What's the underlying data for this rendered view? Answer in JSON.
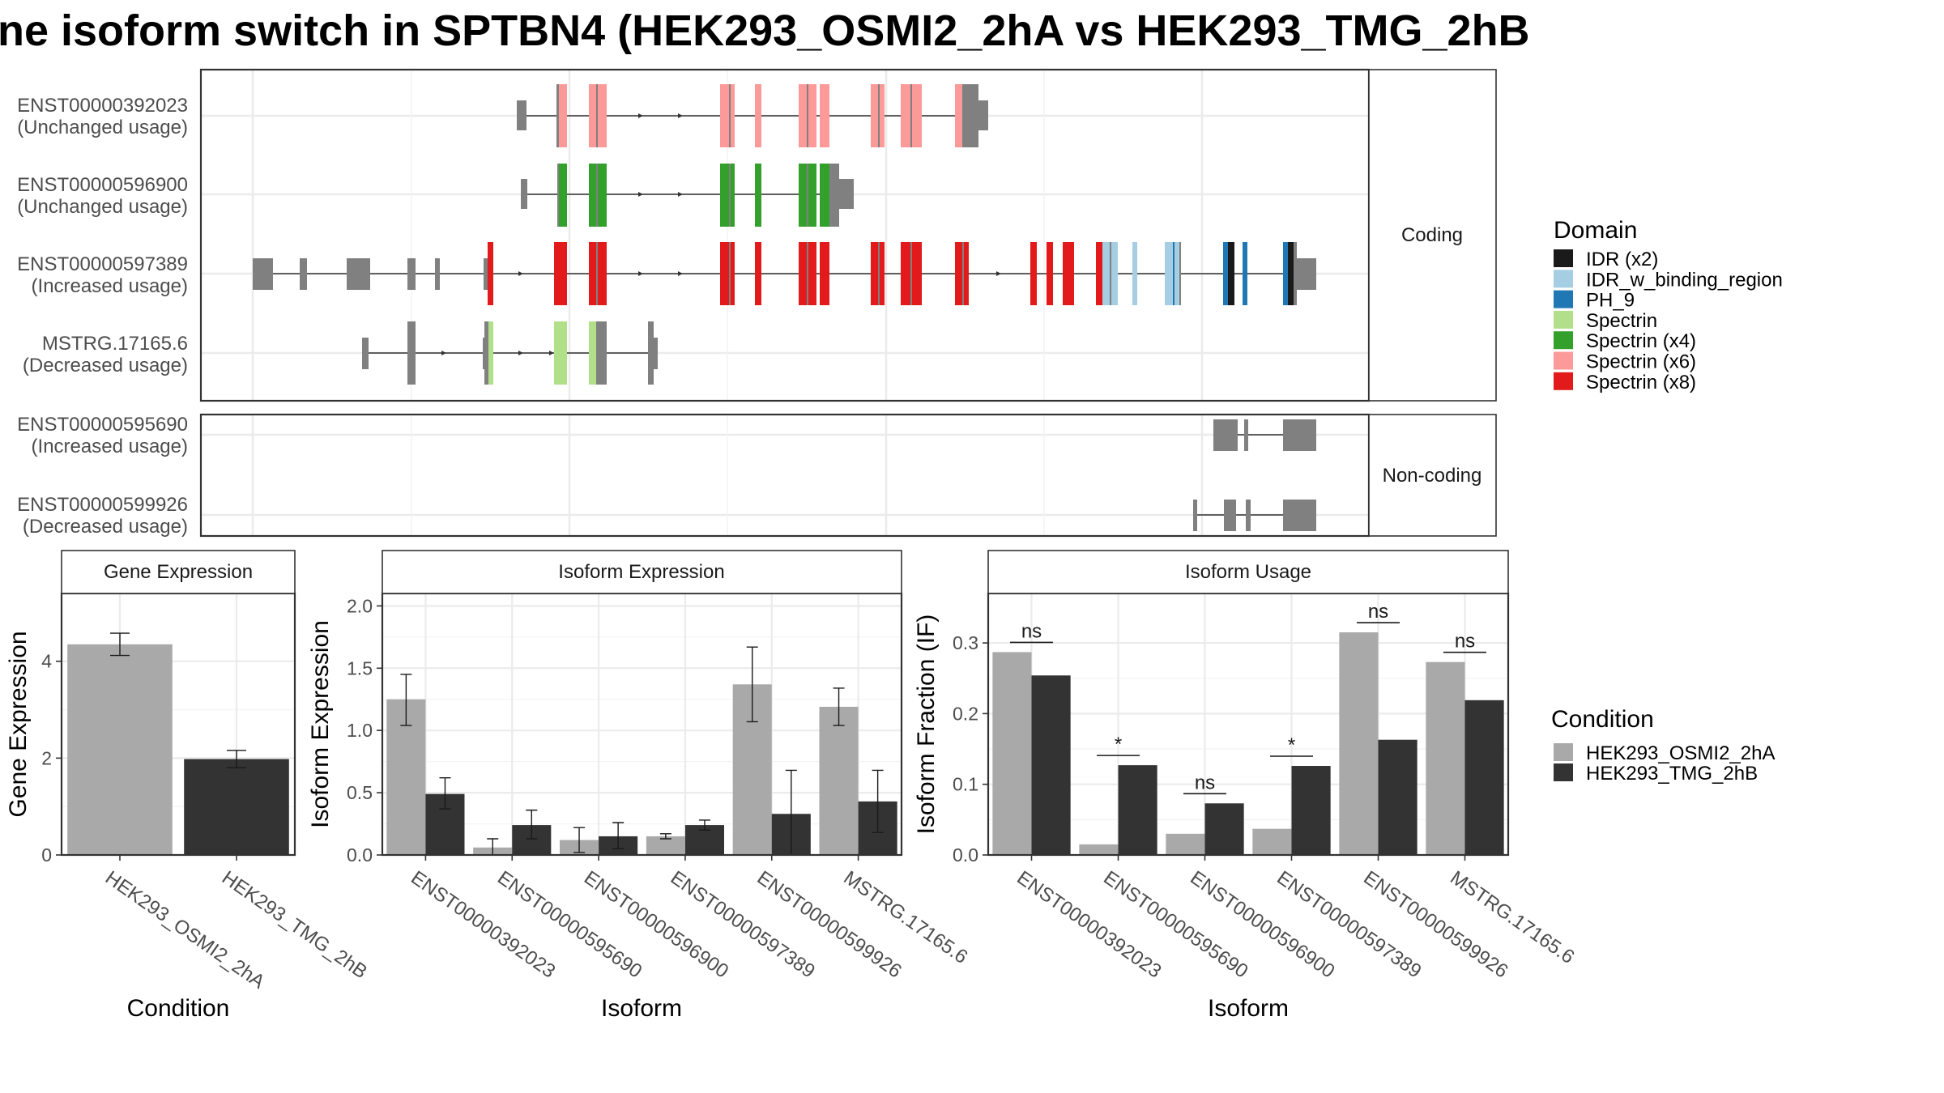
{
  "title": "ne isoform switch in SPTBN4 (HEK293_OSMI2_2hA vs HEK293_TMG_2hB",
  "colors": {
    "cond_a": "#a9a9a9",
    "cond_b": "#333333",
    "exon": "#808080",
    "grid": "#ebebeb",
    "panel_border": "#333333",
    "strip_fill": "#ffffff"
  },
  "structure": {
    "coding_label": "Coding",
    "noncoding_label": "Non-coding",
    "coding_rows": [
      {
        "id": "ENST00000392023",
        "usage": "(Unchanged usage)"
      },
      {
        "id": "ENST00000596900",
        "usage": "(Unchanged usage)"
      },
      {
        "id": "ENST00000597389",
        "usage": "(Increased usage)"
      },
      {
        "id": "MSTRG.17165.6",
        "usage": "(Decreased usage)"
      }
    ],
    "noncoding_rows": [
      {
        "id": "ENST00000595690",
        "usage": "(Increased usage)"
      },
      {
        "id": "ENST00000599926",
        "usage": "(Decreased usage)"
      }
    ]
  },
  "legend_domain": {
    "title": "Domain",
    "items": [
      {
        "label": "IDR (x2)",
        "color": "#1a1a1a"
      },
      {
        "label": "IDR_w_binding_region",
        "color": "#a6cee3"
      },
      {
        "label": "PH_9",
        "color": "#1f78b4"
      },
      {
        "label": "Spectrin",
        "color": "#b2df8a"
      },
      {
        "label": "Spectrin (x4)",
        "color": "#33a02c"
      },
      {
        "label": "Spectrin (x6)",
        "color": "#fb9a99"
      },
      {
        "label": "Spectrin (x8)",
        "color": "#e31a1c"
      }
    ]
  },
  "legend_condition": {
    "title": "Condition",
    "items": [
      {
        "label": "HEK293_OSMI2_2hA",
        "color": "#a9a9a9"
      },
      {
        "label": "HEK293_TMG_2hB",
        "color": "#333333"
      }
    ]
  },
  "chart_data": [
    {
      "type": "bar",
      "strip": "Gene Expression",
      "xlabel": "Condition",
      "ylabel": "Gene Expression",
      "ylim": [
        0,
        5.4
      ],
      "yticks": [
        0,
        2,
        4
      ],
      "categories": [
        "HEK293_OSMI2_2hA",
        "HEK293_TMG_2hB"
      ],
      "values": [
        4.35,
        1.98
      ],
      "errors": [
        [
          4.12,
          4.58
        ],
        [
          1.8,
          2.16
        ]
      ]
    },
    {
      "type": "bar",
      "strip": "Isoform Expression",
      "xlabel": "Isoform",
      "ylabel": "Isoform Expression",
      "ylim": [
        0,
        2.1
      ],
      "yticks": [
        0,
        0.5,
        1,
        1.5,
        2
      ],
      "yticklabels": [
        "0.0",
        "0.5",
        "1.0",
        "1.5",
        "2.0"
      ],
      "categories": [
        "ENST00000392023",
        "ENST00000595690",
        "ENST00000596900",
        "ENST00000597389",
        "ENST00000599926",
        "MSTRG.17165.6"
      ],
      "series": [
        {
          "name": "HEK293_OSMI2_2hA",
          "values": [
            1.25,
            0.06,
            0.12,
            0.15,
            1.37,
            1.19
          ],
          "errors": [
            [
              1.04,
              1.45
            ],
            [
              0.0,
              0.13
            ],
            [
              0.02,
              0.22
            ],
            [
              0.13,
              0.17
            ],
            [
              1.07,
              1.67
            ],
            [
              1.04,
              1.34
            ]
          ]
        },
        {
          "name": "HEK293_TMG_2hB",
          "values": [
            0.49,
            0.24,
            0.15,
            0.24,
            0.33,
            0.43
          ],
          "errors": [
            [
              0.37,
              0.62
            ],
            [
              0.13,
              0.36
            ],
            [
              0.05,
              0.26
            ],
            [
              0.2,
              0.28
            ],
            [
              0.0,
              0.68
            ],
            [
              0.18,
              0.68
            ]
          ]
        }
      ]
    },
    {
      "type": "bar",
      "strip": "Isoform Usage",
      "xlabel": "Isoform",
      "ylabel": "Isoform Fraction (IF)",
      "ylim": [
        0,
        0.37
      ],
      "yticks": [
        0,
        0.1,
        0.2,
        0.3
      ],
      "yticklabels": [
        "0.0",
        "0.1",
        "0.2",
        "0.3"
      ],
      "categories": [
        "ENST00000392023",
        "ENST00000595690",
        "ENST00000596900",
        "ENST00000597389",
        "ENST00000599926",
        "MSTRG.17165.6"
      ],
      "series": [
        {
          "name": "HEK293_OSMI2_2hA",
          "values": [
            0.287,
            0.015,
            0.03,
            0.037,
            0.315,
            0.273
          ]
        },
        {
          "name": "HEK293_TMG_2hB",
          "values": [
            0.254,
            0.127,
            0.073,
            0.126,
            0.163,
            0.219
          ]
        }
      ],
      "significance": [
        "ns",
        "*",
        "ns",
        "*",
        "ns",
        "ns"
      ]
    }
  ]
}
